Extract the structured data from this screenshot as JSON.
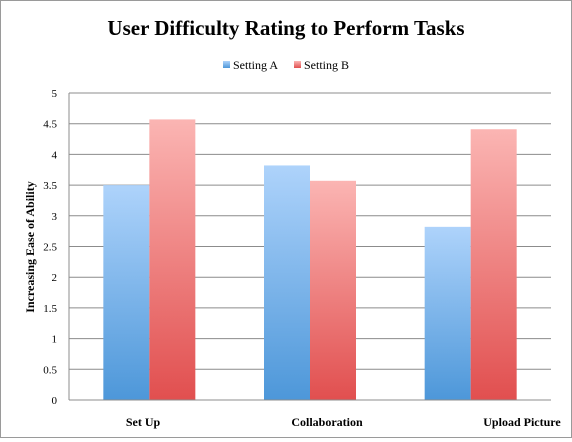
{
  "chart_data": {
    "type": "bar",
    "title": "User Difficulty Rating to Perform Tasks",
    "xlabel": "",
    "ylabel": "Increasing Ease of Ability",
    "categories": [
      "Set Up",
      "Collaboration",
      "Upload Picture"
    ],
    "series": [
      {
        "name": "Setting A",
        "values": [
          3.5,
          3.82,
          2.82
        ],
        "color_top": "#aed3fb",
        "color_bottom": "#4d97d9"
      },
      {
        "name": "Setting B",
        "values": [
          4.57,
          3.57,
          4.41
        ],
        "color_top": "#fbb5b3",
        "color_bottom": "#e14f4f"
      }
    ],
    "ylim": [
      0,
      5
    ],
    "yticks": [
      0,
      0.5,
      1,
      1.5,
      2,
      2.5,
      3,
      3.5,
      4,
      4.5,
      5
    ],
    "ytick_labels": [
      "0",
      "0.5",
      "1",
      "1.5",
      "2",
      "2.5",
      "3",
      "3.5",
      "4",
      "4.5",
      "5"
    ],
    "grid": true,
    "legend_position": "top-center"
  }
}
